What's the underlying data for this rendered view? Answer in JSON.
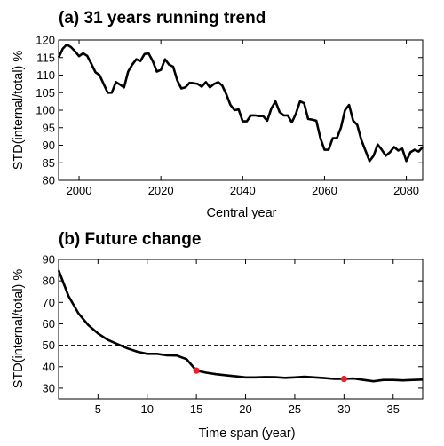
{
  "chart_data": [
    {
      "type": "line",
      "title": "(a) 31 years running trend",
      "xlabel": "Central year",
      "ylabel": "STD(internal/total) %",
      "xlim": [
        1995,
        2084
      ],
      "ylim": [
        80,
        120
      ],
      "xticks": [
        2000,
        2020,
        2040,
        2060,
        2080
      ],
      "yticks": [
        80,
        85,
        90,
        95,
        100,
        105,
        110,
        115,
        120
      ],
      "grid": false,
      "series": [
        {
          "color": "#000000",
          "x": [
            1995,
            1996,
            1997,
            1998,
            1999,
            2000,
            2001,
            2002,
            2003,
            2004,
            2005,
            2006,
            2007,
            2008,
            2009,
            2010,
            2011,
            2012,
            2013,
            2014,
            2015,
            2016,
            2017,
            2018,
            2019,
            2020,
            2021,
            2022,
            2023,
            2024,
            2025,
            2026,
            2027,
            2028,
            2029,
            2030,
            2031,
            2032,
            2033,
            2034,
            2035,
            2036,
            2037,
            2038,
            2039,
            2040,
            2041,
            2042,
            2043,
            2044,
            2045,
            2046,
            2047,
            2048,
            2049,
            2050,
            2051,
            2052,
            2053,
            2054,
            2055,
            2056,
            2057,
            2058,
            2059,
            2060,
            2061,
            2062,
            2063,
            2064,
            2065,
            2066,
            2067,
            2068,
            2069,
            2070,
            2071,
            2072,
            2073,
            2074,
            2075,
            2076,
            2077,
            2078,
            2079,
            2080,
            2081,
            2082,
            2083,
            2084
          ],
          "y": [
            115,
            117.5,
            118.7,
            118,
            116.8,
            115.4,
            116.2,
            115.5,
            113.2,
            110.8,
            110,
            107.5,
            105,
            105,
            108,
            107.3,
            106.5,
            111,
            113,
            114.5,
            114,
            116,
            116.2,
            114,
            111,
            111.5,
            114.5,
            113,
            112.4,
            108.5,
            106.2,
            106.5,
            107.8,
            107.7,
            107.5,
            106.7,
            108,
            106.5,
            107.5,
            108,
            107,
            104.5,
            101.5,
            100,
            100.2,
            96.8,
            96.8,
            98.5,
            98.5,
            98.3,
            98.3,
            97,
            100.5,
            102.5,
            99.5,
            98.5,
            98.5,
            96.5,
            99,
            102.5,
            102,
            97.5,
            97.3,
            97,
            92,
            88.7,
            88.7,
            92,
            92,
            95,
            100,
            101.5,
            97,
            95.8,
            91.5,
            88.5,
            85.5,
            87,
            90.2,
            88.7,
            87,
            88,
            89.5,
            88.5,
            89,
            85.5,
            88,
            88.7,
            88.2,
            89.5
          ]
        }
      ]
    },
    {
      "type": "line",
      "title": "(b) Future change",
      "xlabel": "Time span (year)",
      "ylabel": "STD(internal/total) %",
      "xlim": [
        1,
        38
      ],
      "ylim": [
        25,
        90
      ],
      "xticks": [
        5,
        10,
        15,
        20,
        25,
        30,
        35
      ],
      "yticks": [
        30,
        40,
        50,
        60,
        70,
        80,
        90
      ],
      "grid": false,
      "reference_line": {
        "y": 50,
        "style": "dashed",
        "color": "#000000"
      },
      "highlight_points": [
        {
          "x": 15,
          "y": 38.2
        },
        {
          "x": 30,
          "y": 34.3
        }
      ],
      "highlight_color": "#e8202a",
      "series": [
        {
          "color": "#000000",
          "x": [
            1,
            2,
            3,
            4,
            5,
            6,
            7,
            8,
            9,
            10,
            11,
            12,
            13,
            14,
            15,
            16,
            17,
            18,
            19,
            20,
            21,
            22,
            23,
            24,
            25,
            26,
            27,
            28,
            29,
            30,
            31,
            32,
            33,
            34,
            35,
            36,
            37,
            38
          ],
          "y": [
            85,
            73,
            65,
            59.5,
            55.5,
            52.5,
            50.5,
            48.5,
            47,
            46,
            46,
            45.3,
            45.2,
            43.5,
            38.2,
            37.2,
            36.5,
            36,
            35.5,
            35,
            35,
            35.2,
            35.1,
            34.8,
            35,
            35.3,
            35,
            34.7,
            34.3,
            34.3,
            34.5,
            33.8,
            33.2,
            33.8,
            33.8,
            33.6,
            33.8,
            34
          ]
        }
      ]
    }
  ]
}
